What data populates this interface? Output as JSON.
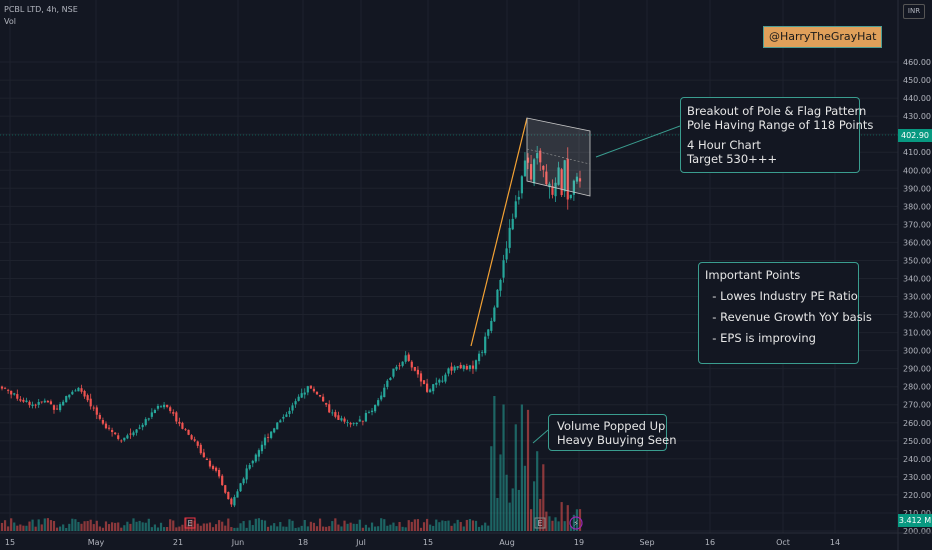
{
  "header": {
    "symbol": "PCBL LTD, 4h, NSE",
    "indicator": "Vol"
  },
  "tag": "@HarryTheGrayHat",
  "currency": "INR",
  "current_price": "402.90",
  "current_volume": "3.412 M",
  "annotations": {
    "flag": [
      "Breakout of Pole & Flag Pattern",
      "Pole Having Range of 118 Points",
      "",
      "4 Hour Chart",
      "Target 530+++"
    ],
    "points": [
      "Important Points",
      "",
      "  - Lowes Industry PE Ratio",
      "",
      "  - Revenue Growth YoY basis",
      "",
      "  - EPS is improving"
    ],
    "volume": [
      "Volume Popped Up",
      "Heavy Buuying Seen"
    ]
  },
  "chart_data": {
    "type": "candlestick",
    "title": "PCBL LTD, 4h, NSE",
    "ylim": [
      200,
      470
    ],
    "y_ticks": [
      200,
      210,
      220,
      230,
      240,
      250,
      260,
      270,
      280,
      290,
      300,
      310,
      320,
      330,
      340,
      350,
      360,
      370,
      380,
      390,
      400,
      410,
      420,
      430,
      440,
      450,
      460
    ],
    "x_tick_labels": [
      "15",
      "May",
      "21",
      "Jun",
      "18",
      "Jul",
      "15",
      "Aug",
      "19",
      "Sep",
      "16",
      "Oct",
      "14"
    ],
    "price_path": [
      280,
      276,
      272,
      270,
      272,
      268,
      275,
      280,
      270,
      262,
      256,
      250,
      255,
      260,
      268,
      270,
      262,
      255,
      246,
      238,
      228,
      214,
      228,
      240,
      250,
      258,
      265,
      272,
      280,
      276,
      266,
      262,
      258,
      262,
      268,
      278,
      290,
      296,
      288,
      278,
      282,
      290,
      292,
      290,
      300,
      320,
      350,
      380,
      405,
      400,
      392,
      384,
      396,
      402
    ],
    "current_price": 402.9,
    "current_volume": "3.412 M",
    "flag_channel": {
      "upper": [
        412,
        404
      ],
      "lower": [
        385,
        372
      ]
    },
    "pole": {
      "from": 294,
      "to": 412,
      "range_points": 118
    },
    "volume_spike_region": "late July - August"
  }
}
